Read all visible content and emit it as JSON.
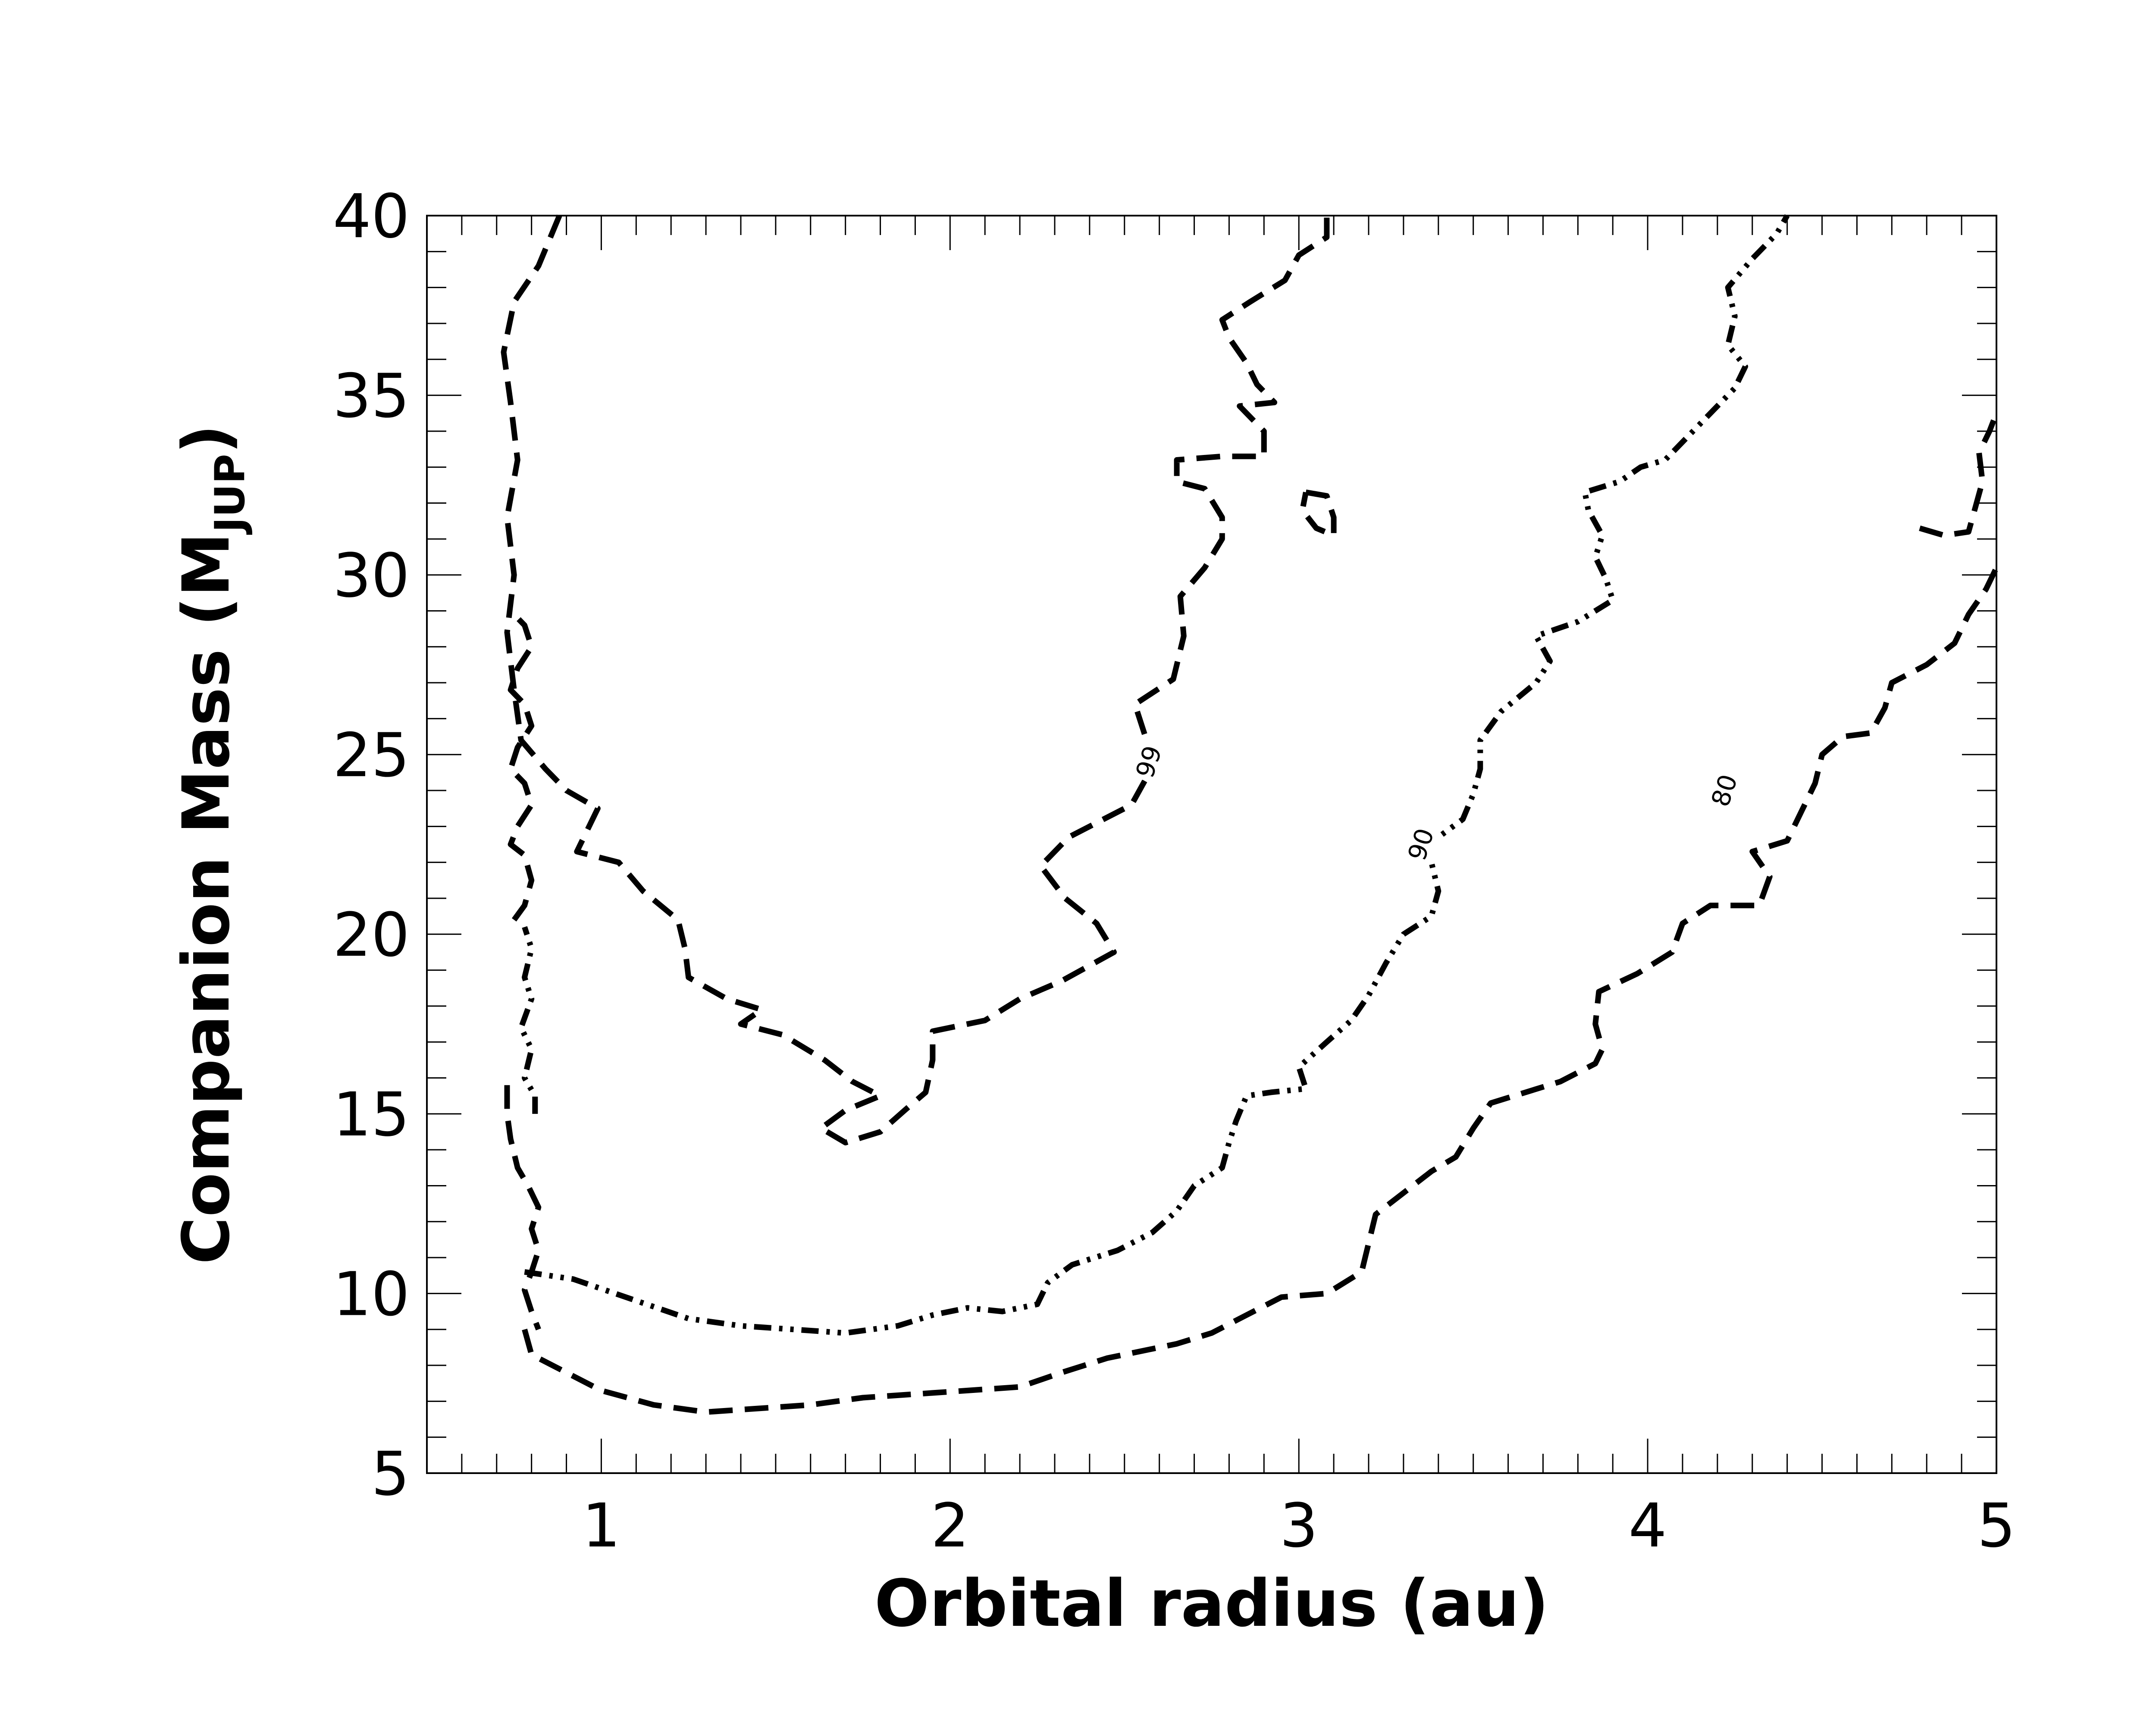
{
  "chart_data": {
    "type": "contour",
    "xlabel": "Orbital radius (au)",
    "ylabel": {
      "main": "Companion Mass (M",
      "sub": "JUP",
      "close": ")"
    },
    "xlim": [
      0.5,
      5
    ],
    "ylim": [
      5,
      40
    ],
    "xticks": [
      1,
      2,
      3,
      4,
      5
    ],
    "yticks": [
      5,
      10,
      15,
      20,
      25,
      30,
      35,
      40
    ],
    "minor_ticks": true,
    "grid": false,
    "colors": {
      "line": "#000000",
      "background": "#ffffff"
    },
    "series": [
      {
        "name": "99",
        "style": "dashed",
        "label_at": [
          2.57,
          24.8
        ],
        "points": [
          [
            0.88,
            40
          ],
          [
            0.82,
            38.6
          ],
          [
            0.75,
            37.6
          ],
          [
            0.72,
            36.2
          ],
          [
            0.74,
            34.8
          ],
          [
            0.76,
            33.2
          ],
          [
            0.73,
            31.6
          ],
          [
            0.75,
            30.0
          ],
          [
            0.73,
            28.4
          ],
          [
            0.75,
            26.8
          ],
          [
            0.77,
            25.4
          ],
          [
            0.84,
            24.6
          ],
          [
            0.9,
            24.0
          ],
          [
            0.99,
            23.5
          ],
          [
            0.96,
            22.9
          ],
          [
            0.93,
            22.3
          ],
          [
            1.05,
            22.0
          ],
          [
            1.12,
            21.2
          ],
          [
            1.22,
            20.4
          ],
          [
            1.24,
            19.6
          ],
          [
            1.25,
            18.8
          ],
          [
            1.36,
            18.2
          ],
          [
            1.46,
            17.9
          ],
          [
            1.4,
            17.5
          ],
          [
            1.52,
            17.2
          ],
          [
            1.64,
            16.5
          ],
          [
            1.72,
            15.9
          ],
          [
            1.8,
            15.5
          ],
          [
            1.7,
            15.1
          ],
          [
            1.63,
            14.6
          ],
          [
            1.7,
            14.2
          ],
          [
            1.8,
            14.5
          ],
          [
            1.87,
            15.1
          ],
          [
            1.93,
            15.6
          ],
          [
            1.95,
            16.5
          ],
          [
            1.95,
            17.3
          ],
          [
            2.1,
            17.6
          ],
          [
            2.2,
            18.2
          ],
          [
            2.32,
            18.7
          ],
          [
            2.47,
            19.5
          ],
          [
            2.42,
            20.3
          ],
          [
            2.33,
            21.0
          ],
          [
            2.26,
            21.9
          ],
          [
            2.34,
            22.7
          ],
          [
            2.42,
            23.1
          ],
          [
            2.52,
            23.6
          ],
          [
            2.56,
            24.3
          ],
          [
            2.57,
            25.2
          ],
          [
            2.53,
            26.4
          ],
          [
            2.64,
            27.1
          ],
          [
            2.67,
            28.3
          ],
          [
            2.66,
            29.4
          ],
          [
            2.73,
            30.2
          ],
          [
            2.78,
            31.0
          ],
          [
            2.78,
            31.6
          ],
          [
            2.73,
            32.4
          ],
          [
            2.65,
            32.6
          ],
          [
            2.65,
            33.2
          ],
          [
            2.78,
            33.3
          ],
          [
            2.9,
            33.3
          ],
          [
            2.9,
            34.0
          ],
          [
            2.83,
            34.7
          ],
          [
            2.93,
            34.8
          ],
          [
            2.88,
            35.3
          ],
          [
            2.85,
            35.9
          ],
          [
            2.8,
            36.6
          ],
          [
            2.78,
            37.1
          ],
          [
            2.86,
            37.6
          ],
          [
            2.96,
            38.2
          ],
          [
            3.0,
            38.9
          ],
          [
            3.08,
            39.4
          ],
          [
            3.08,
            40
          ]
        ]
      },
      {
        "name": "99 (isolated contour near 3.1 au)",
        "style": "dashed",
        "points": [
          [
            3.02,
            32.3
          ],
          [
            3.08,
            32.2
          ],
          [
            3.1,
            31.6
          ],
          [
            3.1,
            31.1
          ],
          [
            3.05,
            31.3
          ],
          [
            3.01,
            31.8
          ],
          [
            3.02,
            32.3
          ]
        ]
      },
      {
        "name": "90",
        "style": "dash-dot-dot",
        "label_at": [
          3.35,
          22.5
        ],
        "points": [
          [
            0.78,
            10.6
          ],
          [
            0.92,
            10.4
          ],
          [
            1.1,
            9.8
          ],
          [
            1.25,
            9.3
          ],
          [
            1.4,
            9.1
          ],
          [
            1.55,
            9.0
          ],
          [
            1.7,
            8.9
          ],
          [
            1.85,
            9.1
          ],
          [
            1.95,
            9.4
          ],
          [
            2.05,
            9.6
          ],
          [
            2.15,
            9.5
          ],
          [
            2.25,
            9.7
          ],
          [
            2.28,
            10.3
          ],
          [
            2.35,
            10.8
          ],
          [
            2.48,
            11.2
          ],
          [
            2.58,
            11.7
          ],
          [
            2.65,
            12.3
          ],
          [
            2.7,
            13.0
          ],
          [
            2.78,
            13.5
          ],
          [
            2.8,
            14.2
          ],
          [
            2.82,
            14.8
          ],
          [
            2.85,
            15.5
          ],
          [
            2.92,
            15.6
          ],
          [
            3.02,
            15.7
          ],
          [
            3.0,
            16.3
          ],
          [
            3.08,
            17.0
          ],
          [
            3.15,
            17.6
          ],
          [
            3.2,
            18.3
          ],
          [
            3.25,
            19.2
          ],
          [
            3.3,
            20.0
          ],
          [
            3.38,
            20.5
          ],
          [
            3.4,
            21.2
          ],
          [
            3.38,
            22.0
          ],
          [
            3.4,
            22.7
          ],
          [
            3.47,
            23.2
          ],
          [
            3.5,
            23.9
          ],
          [
            3.52,
            24.6
          ],
          [
            3.52,
            25.4
          ],
          [
            3.58,
            26.2
          ],
          [
            3.68,
            27.0
          ],
          [
            3.72,
            27.6
          ],
          [
            3.68,
            28.3
          ],
          [
            3.8,
            28.7
          ],
          [
            3.9,
            29.3
          ],
          [
            3.88,
            29.9
          ],
          [
            3.85,
            30.5
          ],
          [
            3.87,
            31.1
          ],
          [
            3.83,
            31.8
          ],
          [
            3.82,
            32.3
          ],
          [
            3.92,
            32.6
          ],
          [
            3.98,
            33.0
          ],
          [
            4.05,
            33.2
          ],
          [
            4.1,
            33.7
          ],
          [
            4.18,
            34.5
          ],
          [
            4.25,
            35.2
          ],
          [
            4.28,
            35.8
          ],
          [
            4.23,
            36.4
          ],
          [
            4.25,
            37.2
          ],
          [
            4.23,
            38.0
          ],
          [
            4.3,
            38.8
          ],
          [
            4.37,
            39.5
          ],
          [
            4.4,
            40
          ]
        ]
      },
      {
        "name": "80",
        "style": "dashed",
        "label_at": [
          4.22,
          24.0
        ],
        "points": [
          [
            0.78,
            9.0
          ],
          [
            0.8,
            8.3
          ],
          [
            0.88,
            7.9
          ],
          [
            1.0,
            7.3
          ],
          [
            1.15,
            6.9
          ],
          [
            1.3,
            6.7
          ],
          [
            1.45,
            6.8
          ],
          [
            1.6,
            6.9
          ],
          [
            1.75,
            7.1
          ],
          [
            1.9,
            7.2
          ],
          [
            2.05,
            7.3
          ],
          [
            2.2,
            7.4
          ],
          [
            2.32,
            7.8
          ],
          [
            2.45,
            8.2
          ],
          [
            2.55,
            8.4
          ],
          [
            2.65,
            8.6
          ],
          [
            2.75,
            8.9
          ],
          [
            2.85,
            9.4
          ],
          [
            2.95,
            9.9
          ],
          [
            3.08,
            10.0
          ],
          [
            3.18,
            10.6
          ],
          [
            3.2,
            11.4
          ],
          [
            3.22,
            12.2
          ],
          [
            3.3,
            12.8
          ],
          [
            3.38,
            13.4
          ],
          [
            3.45,
            13.8
          ],
          [
            3.5,
            14.6
          ],
          [
            3.55,
            15.3
          ],
          [
            3.65,
            15.6
          ],
          [
            3.75,
            15.9
          ],
          [
            3.85,
            16.4
          ],
          [
            3.87,
            16.8
          ],
          [
            3.85,
            17.5
          ],
          [
            3.86,
            18.4
          ],
          [
            3.97,
            18.9
          ],
          [
            4.07,
            19.5
          ],
          [
            4.1,
            20.3
          ],
          [
            4.18,
            20.8
          ],
          [
            4.32,
            20.8
          ],
          [
            4.35,
            21.6
          ],
          [
            4.3,
            22.3
          ],
          [
            4.4,
            22.6
          ],
          [
            4.44,
            23.4
          ],
          [
            4.48,
            24.2
          ],
          [
            4.5,
            25.0
          ],
          [
            4.56,
            25.5
          ],
          [
            4.64,
            25.6
          ],
          [
            4.68,
            26.3
          ],
          [
            4.7,
            27.0
          ],
          [
            4.8,
            27.5
          ],
          [
            4.88,
            28.1
          ],
          [
            4.92,
            28.9
          ],
          [
            4.97,
            29.6
          ],
          [
            5.0,
            30.2
          ]
        ]
      },
      {
        "name": "80 (upper-right segment)",
        "style": "dashed",
        "points": [
          [
            4.78,
            31.3
          ],
          [
            4.85,
            31.1
          ],
          [
            4.92,
            31.2
          ],
          [
            4.94,
            31.9
          ],
          [
            4.96,
            32.6
          ],
          [
            4.95,
            33.4
          ],
          [
            4.98,
            34.0
          ],
          [
            5.0,
            34.5
          ]
        ]
      },
      {
        "name": "small closed contours near 0.8 au",
        "style": "dashed",
        "points": [
          [
            0.75,
            20.4
          ],
          [
            0.78,
            20.8
          ],
          [
            0.8,
            21.5
          ],
          [
            0.78,
            22.2
          ],
          [
            0.74,
            22.5
          ],
          [
            0.76,
            23.0
          ],
          [
            0.8,
            23.6
          ],
          [
            0.78,
            24.2
          ],
          [
            0.74,
            24.6
          ],
          [
            0.76,
            25.2
          ],
          [
            0.8,
            25.8
          ],
          [
            0.78,
            26.4
          ],
          [
            0.74,
            26.8
          ],
          [
            0.76,
            27.4
          ],
          [
            0.8,
            28.0
          ],
          [
            0.78,
            28.6
          ],
          [
            0.74,
            29.0
          ]
        ]
      },
      {
        "name": "lower-left edge near 0.8 au",
        "style": "dashed",
        "points": [
          [
            0.73,
            15.8
          ],
          [
            0.73,
            15.0
          ],
          [
            0.74,
            14.3
          ],
          [
            0.76,
            13.5
          ],
          [
            0.79,
            13.0
          ],
          [
            0.82,
            12.4
          ],
          [
            0.8,
            11.8
          ],
          [
            0.82,
            11.2
          ],
          [
            0.8,
            10.6
          ],
          [
            0.78,
            10.1
          ],
          [
            0.8,
            9.5
          ],
          [
            0.82,
            9.0
          ]
        ]
      },
      {
        "name": "dash-dot left edge",
        "style": "dash-dot-dot",
        "points": [
          [
            0.81,
            15.0
          ],
          [
            0.81,
            15.5
          ],
          [
            0.78,
            16.0
          ],
          [
            0.8,
            16.8
          ],
          [
            0.77,
            17.4
          ],
          [
            0.8,
            18.2
          ],
          [
            0.78,
            18.8
          ],
          [
            0.8,
            19.6
          ],
          [
            0.78,
            20.2
          ]
        ]
      }
    ]
  }
}
